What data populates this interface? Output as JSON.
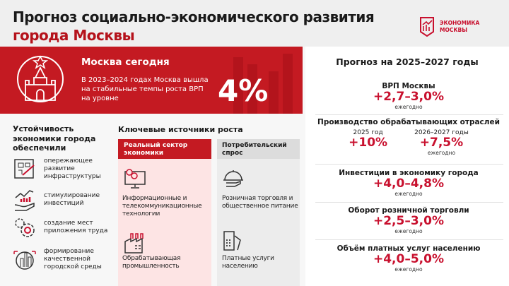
{
  "header": {
    "title_line1": "Прогноз социально-экономического развития",
    "title_line2": "города Москвы",
    "logo_line1": "ЭКОНОМИКА",
    "logo_line2": "МОСКВЫ"
  },
  "banner": {
    "title": "Москва сегодня",
    "text": "В 2023–2024 годах Москва вышла на стабильные темпы роста ВРП на уровне",
    "value": "4%"
  },
  "stability": {
    "heading": "Устойчивость экономики города обеспечили",
    "items": [
      {
        "icon": "infrastructure-plan-icon",
        "label": "опережающее развитие инфраструктуры"
      },
      {
        "icon": "investment-hand-chart-icon",
        "label": "стимулирование инвестиций"
      },
      {
        "icon": "gears-icon",
        "label": "создание мест приложения труда"
      },
      {
        "icon": "city-globe-icon",
        "label": "формирование качественной городской среды"
      }
    ]
  },
  "sources": {
    "heading": "Ключевые источники роста",
    "columns": [
      {
        "header": "Реальный сектор экономики",
        "items": [
          {
            "icon": "computer-gears-icon",
            "label": "Информационные и телекоммуникационные технологии"
          },
          {
            "icon": "factory-icon",
            "label": "Обрабатывающая промышленность"
          }
        ]
      },
      {
        "header": "Потребительский спрос",
        "items": [
          {
            "icon": "serving-cloche-icon",
            "label": "Розничная торговля и общественное питание"
          },
          {
            "icon": "payment-terminal-icon",
            "label": "Платные услуги населению"
          }
        ]
      }
    ]
  },
  "forecast": {
    "title": "Прогноз на 2025–2027 годы",
    "grp": {
      "label": "ВРП Москвы",
      "value": "+2,7–3,0%",
      "note": "ежегодно"
    },
    "manufacturing": {
      "label": "Производство обрабатывающих отраслей",
      "a_period": "2025 год",
      "a_value": "+10%",
      "b_period": "2026–2027 годы",
      "b_value": "+7,5%",
      "b_note": "ежегодно"
    },
    "investment": {
      "label": "Инвестиции в экономику города",
      "value": "+4,0–4,8%",
      "note": "ежегодно"
    },
    "retail": {
      "label": "Оборот розничной торговли",
      "value": "+2,5–3,0%",
      "note": "ежегодно"
    },
    "services": {
      "label": "Объём платных услуг населению",
      "value": "+4,0–5,0%",
      "note": "ежегодно"
    }
  },
  "colors": {
    "accent": "#c41a22",
    "pink": "#fde4e4",
    "gray": "#ececec"
  }
}
